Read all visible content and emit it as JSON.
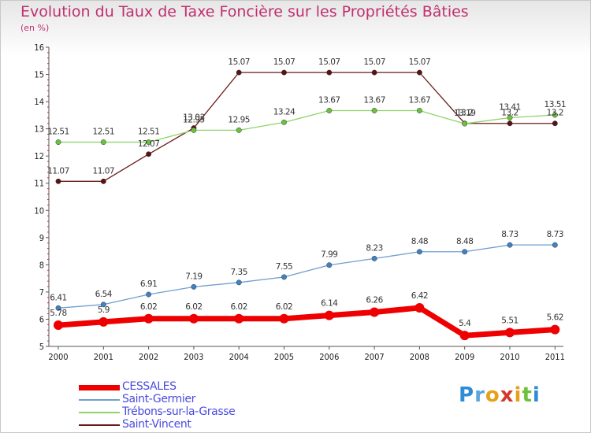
{
  "title": "Evolution du Taux de Taxe Foncière sur les Propriétés Bâties",
  "unit_label": "(en %)",
  "logo": {
    "letters": [
      "P",
      "r",
      "o",
      "x",
      "i",
      "t",
      "i"
    ],
    "colors": [
      "#2e8bd6",
      "#5aa6e0",
      "#e8a01a",
      "#d13a2a",
      "#e8a01a",
      "#6fbf3a",
      "#2e8bd6"
    ]
  },
  "chart_data": {
    "type": "line",
    "x": [
      "2000",
      "2001",
      "2002",
      "2003",
      "2004",
      "2005",
      "2006",
      "2007",
      "2008",
      "2009",
      "2010",
      "2011"
    ],
    "ylim": [
      5,
      16
    ],
    "yticks": [
      "5",
      "6",
      "7",
      "8",
      "9",
      "10",
      "11",
      "12",
      "13",
      "14",
      "15",
      "16"
    ],
    "grid": false,
    "legend_position": "bottom-left",
    "series": [
      {
        "name": "Saint-Vincent",
        "color": "#6b1a1a",
        "point_color": "#5a1212",
        "width": 1.3,
        "point_radius": 3.2,
        "values": [
          11.07,
          11.07,
          12.07,
          13.03,
          15.07,
          15.07,
          15.07,
          15.07,
          15.07,
          13.2,
          13.2,
          13.2
        ],
        "labels": [
          "11.07",
          "11.07",
          "12.07",
          "13.03",
          "15.07",
          "15.07",
          "15.07",
          "15.07",
          "15.07",
          "13.2",
          "13.2",
          "13.2"
        ]
      },
      {
        "name": "Trébons-sur-la-Grasse",
        "color": "#8fd46a",
        "point_color": "#6cc23f",
        "width": 1.3,
        "point_radius": 3.2,
        "values": [
          12.51,
          12.51,
          12.51,
          12.95,
          12.95,
          13.24,
          13.67,
          13.67,
          13.67,
          13.19,
          13.41,
          13.51
        ],
        "labels": [
          "12.51",
          "12.51",
          "12.51",
          "12.95",
          "12.95",
          "13.24",
          "13.67",
          "13.67",
          "13.67",
          "13.19",
          "13.41",
          "13.51"
        ]
      },
      {
        "name": "Saint-Germier",
        "color": "#6f9fd0",
        "point_color": "#3f82c4",
        "width": 1.3,
        "point_radius": 3.2,
        "values": [
          6.41,
          6.54,
          6.91,
          7.19,
          7.35,
          7.55,
          7.99,
          8.23,
          8.48,
          8.48,
          8.73,
          8.73
        ],
        "labels": [
          "6.41",
          "6.54",
          "6.91",
          "7.19",
          "7.35",
          "7.55",
          "7.99",
          "8.23",
          "8.48",
          "8.48",
          "8.73",
          "8.73"
        ]
      },
      {
        "name": "CESSALES",
        "color": "#ee0000",
        "point_color": "#ee0000",
        "width": 7,
        "point_radius": 6,
        "values": [
          5.78,
          5.9,
          6.02,
          6.02,
          6.02,
          6.02,
          6.14,
          6.26,
          6.42,
          5.4,
          5.51,
          5.62
        ],
        "labels": [
          "5.78",
          "5.9",
          "6.02",
          "6.02",
          "6.02",
          "6.02",
          "6.14",
          "6.26",
          "6.42",
          "5.4",
          "5.51",
          "5.62"
        ]
      }
    ],
    "legend": [
      {
        "name": "CESSALES",
        "color": "#ee0000",
        "thickness": 7
      },
      {
        "name": "Saint-Germier",
        "color": "#6f9fd0",
        "thickness": 2
      },
      {
        "name": "Trébons-sur-la-Grasse",
        "color": "#8fd46a",
        "thickness": 2
      },
      {
        "name": "Saint-Vincent",
        "color": "#6b1a1a",
        "thickness": 2
      }
    ]
  }
}
